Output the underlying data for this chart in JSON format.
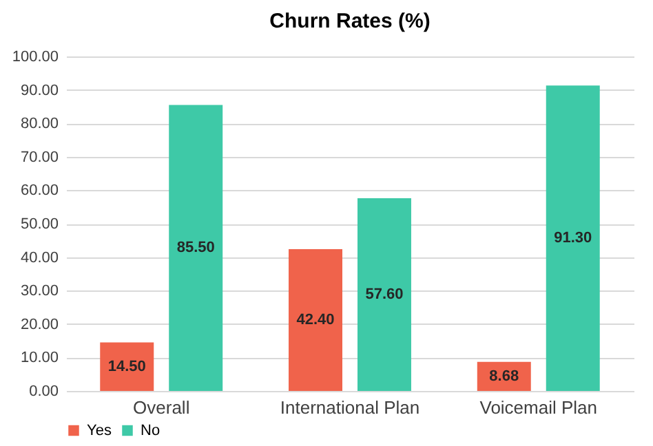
{
  "chart_data": {
    "type": "bar",
    "title": "Churn Rates (%)",
    "categories": [
      "Overall",
      "International Plan",
      "Voicemail Plan"
    ],
    "series": [
      {
        "name": "Yes",
        "color": "#f0634b",
        "values": [
          14.5,
          42.4,
          8.68
        ],
        "value_labels": [
          "14.50",
          "42.40",
          "8.68"
        ]
      },
      {
        "name": "No",
        "color": "#3ec9a7",
        "values": [
          85.5,
          57.6,
          91.3
        ],
        "value_labels": [
          "85.50",
          "57.60",
          "91.30"
        ]
      }
    ],
    "ylim": [
      0,
      100
    ],
    "yticks": [
      {
        "value": 0,
        "label": "0.00"
      },
      {
        "value": 10,
        "label": "10.00"
      },
      {
        "value": 20,
        "label": "20.00"
      },
      {
        "value": 30,
        "label": "30.00"
      },
      {
        "value": 40,
        "label": "40.00"
      },
      {
        "value": 50,
        "label": "50.00"
      },
      {
        "value": 60,
        "label": "60.00"
      },
      {
        "value": 70,
        "label": "70.00"
      },
      {
        "value": 80,
        "label": "80.00"
      },
      {
        "value": 90,
        "label": "90.00"
      },
      {
        "value": 100,
        "label": "100.00"
      }
    ],
    "grid": "y",
    "legend": "bottom"
  }
}
